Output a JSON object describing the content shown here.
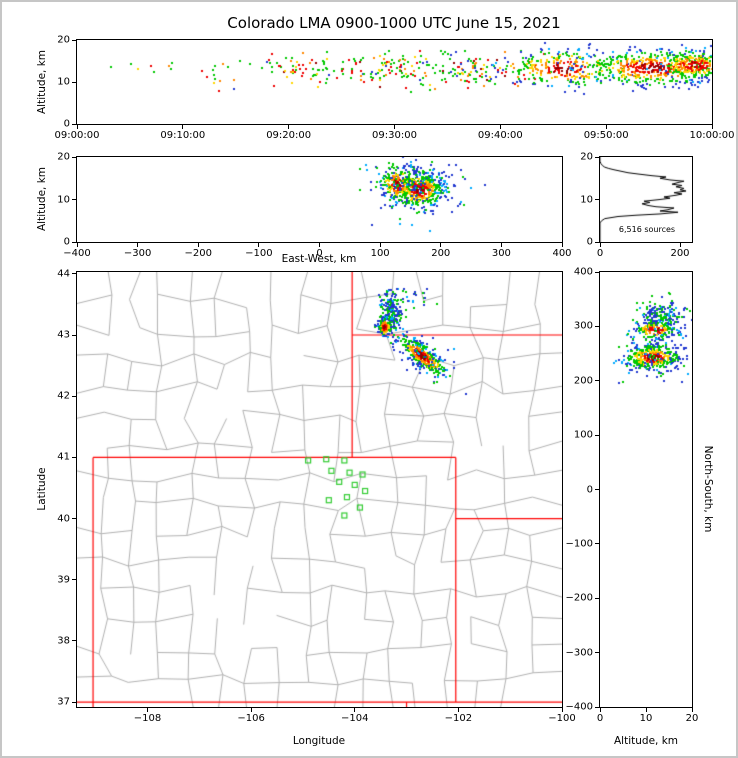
{
  "title": "Colorado LMA 0900-1000 UTC June 15, 2021",
  "axis_labels": {
    "altitude": "Altitude, km",
    "east_west": "East-West, km",
    "longitude": "Longitude",
    "latitude": "Latitude",
    "north_south": "North-South, km"
  },
  "colors": {
    "core": "#990000",
    "red": "#ee0000",
    "orange": "#ff8800",
    "yellow": "#ffd700",
    "green": "#00c800",
    "cyan": "#00aaff",
    "blue": "#2238d0",
    "station": "#33cc33",
    "county": "#b0b0b0",
    "state": "#ff0000",
    "histogram": "#000000"
  },
  "chart_data": [
    {
      "id": "time_height",
      "type": "scatter",
      "xlabel": "",
      "ylabel": "Altitude, km",
      "xlim": [
        0,
        3600
      ],
      "ylim": [
        0,
        20
      ],
      "xticks": [
        {
          "v": 0,
          "t": "09:00:00"
        },
        {
          "v": 600,
          "t": "09:10:00"
        },
        {
          "v": 1200,
          "t": "09:20:00"
        },
        {
          "v": 1800,
          "t": "09:30:00"
        },
        {
          "v": 2400,
          "t": "09:40:00"
        },
        {
          "v": 3000,
          "t": "09:50:00"
        },
        {
          "v": 3600,
          "t": "10:00:00"
        }
      ],
      "yticks": [
        {
          "v": 0,
          "t": "0"
        },
        {
          "v": 10,
          "t": "10"
        },
        {
          "v": 20,
          "t": "20"
        }
      ],
      "clusters": [
        {
          "cx": 380,
          "cy": 13.3,
          "sx": 130,
          "sy": 0.9,
          "n": 8,
          "mode": "mixed"
        },
        {
          "cx": 790,
          "cy": 12.0,
          "sx": 50,
          "sy": 1.9,
          "n": 14,
          "mode": "mixed"
        },
        {
          "cx": 1120,
          "cy": 14.2,
          "sx": 80,
          "sy": 1.2,
          "n": 16,
          "mode": "mixed"
        },
        {
          "cx": 1330,
          "cy": 13.0,
          "sx": 110,
          "sy": 1.8,
          "n": 48,
          "mode": "mixed"
        },
        {
          "cx": 1760,
          "cy": 12.8,
          "sx": 150,
          "sy": 2.0,
          "n": 85,
          "mode": "mixed"
        },
        {
          "cx": 2250,
          "cy": 13.0,
          "sx": 180,
          "sy": 2.2,
          "n": 140,
          "mode": "mixed"
        },
        {
          "cx": 2760,
          "cy": 13.2,
          "sx": 170,
          "sy": 2.2,
          "n": 270,
          "mode": "density"
        },
        {
          "cx": 3270,
          "cy": 13.4,
          "sx": 200,
          "sy": 2.1,
          "n": 520,
          "mode": "density"
        },
        {
          "cx": 3500,
          "cy": 14.0,
          "sx": 100,
          "sy": 1.7,
          "n": 280,
          "mode": "density"
        }
      ]
    },
    {
      "id": "ew_height",
      "type": "scatter",
      "xlabel": "East-West, km",
      "ylabel": "Altitude, km",
      "xlim": [
        -400,
        400
      ],
      "ylim": [
        0,
        20
      ],
      "xticks": [
        {
          "v": -400,
          "t": "−400"
        },
        {
          "v": -300,
          "t": "−300"
        },
        {
          "v": -200,
          "t": "−200"
        },
        {
          "v": -100,
          "t": "−100"
        },
        {
          "v": 0,
          "t": "0"
        },
        {
          "v": 100,
          "t": "100"
        },
        {
          "v": 200,
          "t": "200"
        },
        {
          "v": 300,
          "t": "300"
        },
        {
          "v": 400,
          "t": "400"
        }
      ],
      "yticks": [
        {
          "v": 0,
          "t": "0"
        },
        {
          "v": 10,
          "t": "10"
        },
        {
          "v": 20,
          "t": "20"
        }
      ],
      "clusters": [
        {
          "cx": 165,
          "cy": 12.3,
          "sx": 20,
          "sy": 2.0,
          "n": 500,
          "mode": "density"
        },
        {
          "cx": 128,
          "cy": 13.6,
          "sx": 13,
          "sy": 2.1,
          "n": 170,
          "mode": "density"
        },
        {
          "cx": 160,
          "cy": 13.0,
          "sx": 42,
          "sy": 3.1,
          "n": 170,
          "mode": "fringe"
        }
      ]
    },
    {
      "id": "alt_histogram",
      "type": "line",
      "xlabel": "",
      "ylabel": "",
      "annotation": "6,516 sources",
      "xlim": [
        0,
        230
      ],
      "ylim": [
        0,
        20
      ],
      "xticks": [
        {
          "v": 0,
          "t": "0"
        },
        {
          "v": 200,
          "t": "200"
        }
      ],
      "yticks": [
        {
          "v": 0,
          "t": "0"
        },
        {
          "v": 10,
          "t": "10"
        },
        {
          "v": 20,
          "t": "20"
        }
      ],
      "profile": [
        [
          0,
          0
        ],
        [
          4.5,
          0
        ],
        [
          5,
          4
        ],
        [
          5.5,
          12
        ],
        [
          6,
          45
        ],
        [
          6.3,
          90
        ],
        [
          6.6,
          150
        ],
        [
          7,
          195
        ],
        [
          7.3,
          150
        ],
        [
          7.6,
          170
        ],
        [
          8,
          185
        ],
        [
          8.3,
          140
        ],
        [
          8.6,
          120
        ],
        [
          9,
          105
        ],
        [
          9.3,
          125
        ],
        [
          9.6,
          110
        ],
        [
          10,
          150
        ],
        [
          10.3,
          175
        ],
        [
          10.6,
          160
        ],
        [
          11,
          190
        ],
        [
          11.3,
          205
        ],
        [
          11.6,
          185
        ],
        [
          12,
          215
        ],
        [
          12.3,
          200
        ],
        [
          12.6,
          210
        ],
        [
          13,
          190
        ],
        [
          13.3,
          205
        ],
        [
          13.6,
          180
        ],
        [
          14,
          195
        ],
        [
          14.3,
          210
        ],
        [
          14.6,
          175
        ],
        [
          15,
          150
        ],
        [
          15.3,
          165
        ],
        [
          15.6,
          130
        ],
        [
          16,
          95
        ],
        [
          16.3,
          70
        ],
        [
          16.6,
          55
        ],
        [
          17,
          35
        ],
        [
          17.3,
          22
        ],
        [
          17.6,
          12
        ],
        [
          18,
          6
        ],
        [
          18.5,
          2
        ],
        [
          19,
          0
        ],
        [
          20,
          0
        ]
      ]
    },
    {
      "id": "plan_view",
      "type": "scatter",
      "xlabel": "Longitude",
      "ylabel": "Latitude",
      "xlim": [
        -109.36,
        -100
      ],
      "ylim": [
        36.92,
        44.03
      ],
      "xticks": [
        {
          "v": -108,
          "t": "−108"
        },
        {
          "v": -106,
          "t": "−106"
        },
        {
          "v": -104,
          "t": "−104"
        },
        {
          "v": -102,
          "t": "−102"
        },
        {
          "v": -100,
          "t": "−100"
        }
      ],
      "yticks": [
        {
          "v": 37,
          "t": "37"
        },
        {
          "v": 38,
          "t": "38"
        },
        {
          "v": 39,
          "t": "39"
        },
        {
          "v": 40,
          "t": "40"
        },
        {
          "v": 41,
          "t": "41"
        },
        {
          "v": 42,
          "t": "42"
        },
        {
          "v": 43,
          "t": "43"
        },
        {
          "v": 44,
          "t": "44"
        }
      ],
      "counties": true,
      "state_lines": [
        [
          [
            -109.05,
            36.92
          ],
          [
            -109.05,
            41.0
          ]
        ],
        [
          [
            -109.36,
            37.0
          ],
          [
            -100.0,
            37.0
          ]
        ],
        [
          [
            -109.05,
            41.0
          ],
          [
            -102.05,
            41.0
          ]
        ],
        [
          [
            -102.05,
            41.0
          ],
          [
            -102.05,
            37.0
          ]
        ],
        [
          [
            -104.05,
            41.0
          ],
          [
            -104.05,
            44.03
          ]
        ],
        [
          [
            -104.05,
            43.0
          ],
          [
            -100.0,
            43.0
          ]
        ],
        [
          [
            -102.05,
            40.0
          ],
          [
            -100.0,
            40.0
          ]
        ],
        [
          [
            -103.0,
            37.0
          ],
          [
            -103.0,
            36.92
          ]
        ]
      ],
      "stations": [
        [
          -104.9,
          40.95
        ],
        [
          -104.55,
          40.97
        ],
        [
          -104.2,
          40.95
        ],
        [
          -104.45,
          40.78
        ],
        [
          -104.1,
          40.75
        ],
        [
          -103.85,
          40.72
        ],
        [
          -104.3,
          40.6
        ],
        [
          -104.0,
          40.55
        ],
        [
          -103.8,
          40.45
        ],
        [
          -104.15,
          40.35
        ],
        [
          -104.5,
          40.3
        ],
        [
          -103.9,
          40.18
        ],
        [
          -104.2,
          40.05
        ]
      ],
      "clusters": [
        {
          "cx": -103.3,
          "cy": 43.36,
          "sx": 0.12,
          "sy": 0.16,
          "n": 230,
          "mode": "fringe"
        },
        {
          "cx": -103.42,
          "cy": 43.13,
          "sx": 0.06,
          "sy": 0.07,
          "n": 130,
          "mode": "density"
        },
        {
          "cx": -102.88,
          "cy": 43.62,
          "sx": 0.18,
          "sy": 0.08,
          "n": 26,
          "mode": "fringe"
        },
        {
          "cx": -102.7,
          "cy": 42.66,
          "sx": 0.26,
          "sy": 0.075,
          "rot": -33,
          "n": 340,
          "mode": "density"
        },
        {
          "cx": -102.72,
          "cy": 42.68,
          "sx": 0.34,
          "sy": 0.15,
          "rot": -33,
          "n": 90,
          "mode": "fringe"
        }
      ]
    },
    {
      "id": "ns_height",
      "type": "scatter",
      "xlabel": "Altitude, km",
      "ylabel": "North-South, km",
      "xlim": [
        0,
        20
      ],
      "ylim": [
        -400,
        400
      ],
      "xticks": [
        {
          "v": 0,
          "t": "0"
        },
        {
          "v": 10,
          "t": "10"
        },
        {
          "v": 20,
          "t": "20"
        }
      ],
      "yticks": [
        {
          "v": 400,
          "t": "400"
        },
        {
          "v": 300,
          "t": "300"
        },
        {
          "v": 200,
          "t": "200"
        },
        {
          "v": 100,
          "t": "100"
        },
        {
          "v": 0,
          "t": "0"
        },
        {
          "v": -100,
          "t": "−100"
        },
        {
          "v": -200,
          "t": "−200"
        },
        {
          "v": -300,
          "t": "−300"
        },
        {
          "v": -400,
          "t": "−400"
        }
      ],
      "clusters": [
        {
          "cx": 13.0,
          "cy": 318,
          "sx": 2.6,
          "sy": 17,
          "n": 230,
          "mode": "fringe"
        },
        {
          "cx": 12.0,
          "cy": 293,
          "sx": 2.2,
          "sy": 8,
          "n": 120,
          "mode": "density"
        },
        {
          "cx": 11.5,
          "cy": 243,
          "sx": 2.8,
          "sy": 11,
          "n": 360,
          "mode": "density"
        },
        {
          "cx": 12.5,
          "cy": 250,
          "sx": 4.0,
          "sy": 25,
          "n": 110,
          "mode": "fringe"
        }
      ]
    }
  ]
}
